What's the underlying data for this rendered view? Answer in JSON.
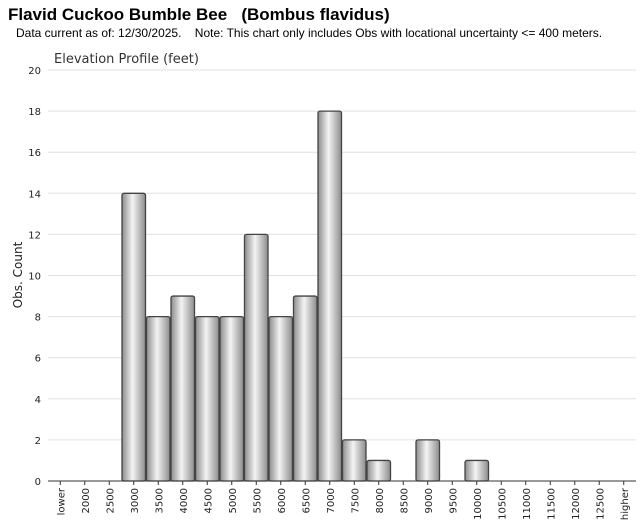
{
  "header": {
    "title": "Flavid Cuckoo Bumble Bee   (Bombus flavidus)",
    "note": "Data current as of: 12/30/2025.    Note: This chart only includes Obs with locational uncertainty <= 400 meters."
  },
  "chart_data": {
    "type": "bar",
    "title": "Elevation Profile (feet)",
    "xlabel": "",
    "ylabel": "Obs. Count",
    "ylim": [
      0,
      20
    ],
    "yticks": [
      0,
      2,
      4,
      6,
      8,
      10,
      12,
      14,
      16,
      18,
      20
    ],
    "grid": true,
    "categories": [
      "lower",
      "2000",
      "2500",
      "3000",
      "3500",
      "4000",
      "4500",
      "5000",
      "5500",
      "6000",
      "6500",
      "7000",
      "7500",
      "8000",
      "8500",
      "9000",
      "9500",
      "10000",
      "10500",
      "11000",
      "11500",
      "12000",
      "12500",
      "higher"
    ],
    "values": [
      0,
      0,
      0,
      14,
      8,
      9,
      8,
      8,
      12,
      8,
      9,
      18,
      2,
      1,
      0,
      2,
      0,
      1,
      0,
      0,
      0,
      0,
      0,
      0
    ],
    "colors": {
      "bar_edge": "#444444",
      "bar_light": "#f4f4f4",
      "bar_dark": "#8c8c8c",
      "grid": "#e0e0e0",
      "axis": "#333333"
    }
  }
}
